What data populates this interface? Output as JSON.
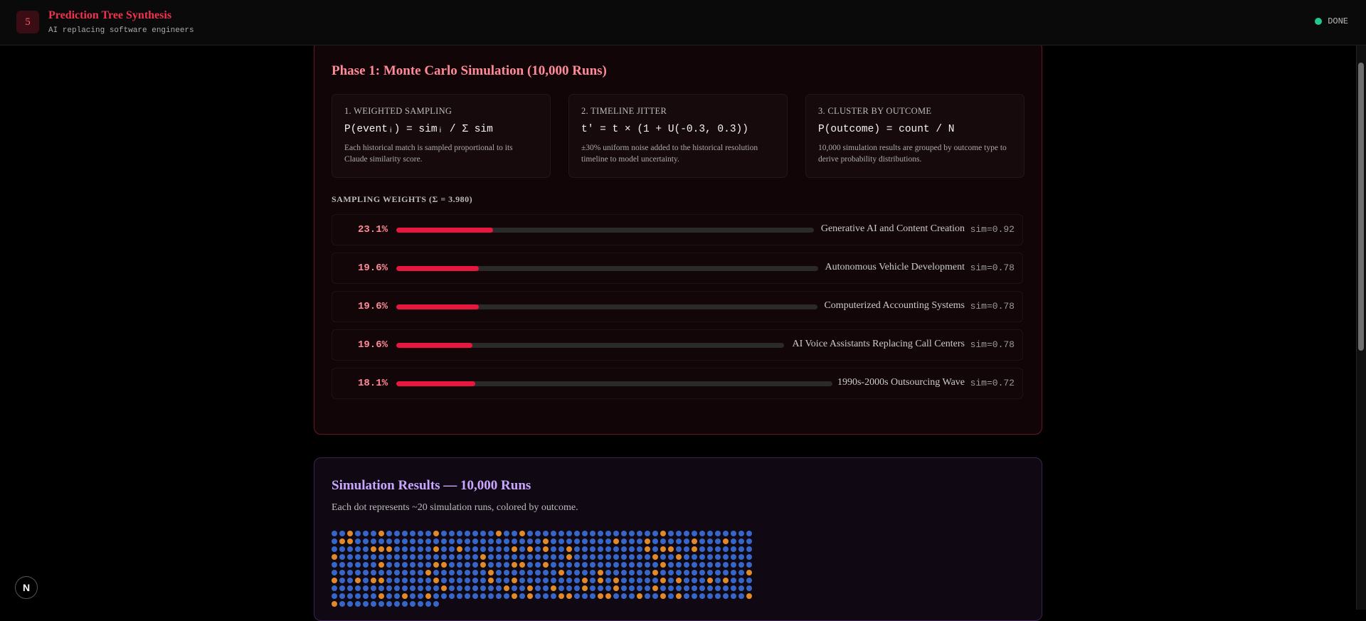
{
  "header": {
    "step_number": "5",
    "title": "Prediction Tree Synthesis",
    "subtitle": "AI replacing software engineers",
    "status": "DONE"
  },
  "phase1": {
    "title": "Phase 1: Monte Carlo Simulation (10,000 Runs)",
    "methods": [
      {
        "heading": "1. Weighted Sampling",
        "formula": "P(eventᵢ) = simᵢ / Σ sim",
        "description": "Each historical match is sampled proportional to its Claude similarity score."
      },
      {
        "heading": "2. Timeline Jitter",
        "formula": "t' = t × (1 + U(-0.3, 0.3))",
        "description": "±30% uniform noise added to the historical resolution timeline to model uncertainty."
      },
      {
        "heading": "3. Cluster by Outcome",
        "formula": "P(outcome) = count / N",
        "description": "10,000 simulation results are grouped by outcome type to derive probability distributions."
      }
    ],
    "weights_heading": "Sampling Weights (Σ = 3.980)",
    "weights": [
      {
        "pct_label": "23.1%",
        "value": 0.231,
        "name": "Generative AI and Content Creation",
        "sim": "sim=0.92"
      },
      {
        "pct_label": "19.6%",
        "value": 0.196,
        "name": "Autonomous Vehicle Development",
        "sim": "sim=0.78"
      },
      {
        "pct_label": "19.6%",
        "value": 0.196,
        "name": "Computerized Accounting Systems",
        "sim": "sim=0.78"
      },
      {
        "pct_label": "19.6%",
        "value": 0.196,
        "name": "AI Voice Assistants Replacing Call Centers",
        "sim": "sim=0.78"
      },
      {
        "pct_label": "18.1%",
        "value": 0.181,
        "name": "1990s-2000s Outsourcing Wave",
        "sim": "sim=0.72"
      }
    ]
  },
  "simulation": {
    "title": "Simulation Results — 10,000 Runs",
    "description": "Each dot represents ~20 simulation runs, colored by outcome.",
    "colors": {
      "primary_outcome": "#3566c8",
      "secondary_outcome": "#e08a2a"
    }
  },
  "colors": {
    "accent": "#e8173f",
    "status_done": "#22c98e"
  },
  "icons": {
    "framework_logo": "next-logo-icon",
    "framework_logo_letter": "N"
  }
}
